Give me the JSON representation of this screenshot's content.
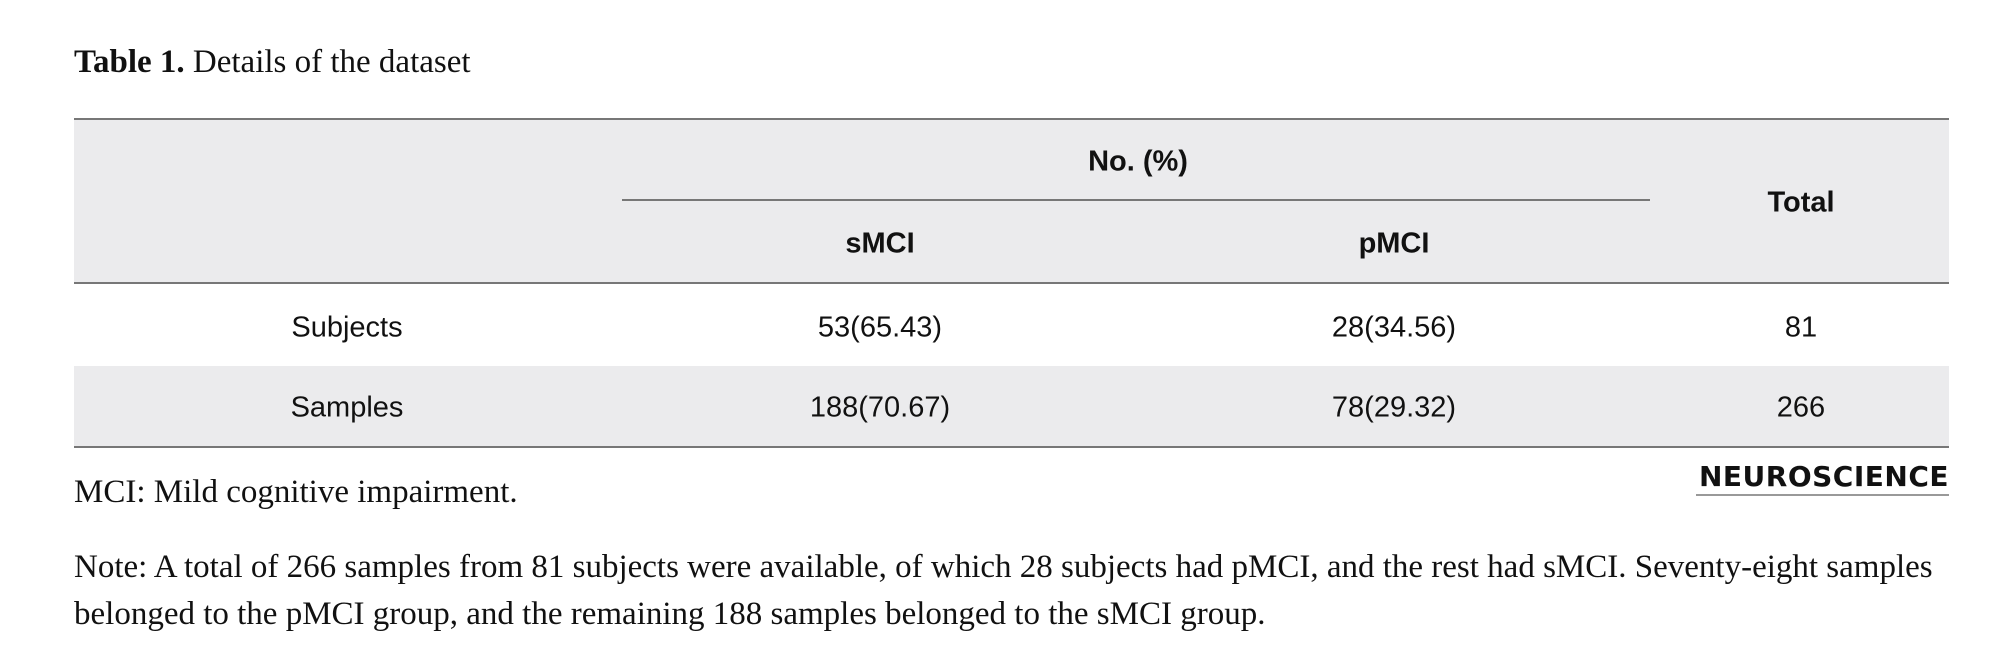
{
  "caption": {
    "label": "Table 1.",
    "text": "Details of the dataset"
  },
  "table": {
    "header": {
      "group": "No. (%)",
      "columns": [
        "sMCI",
        "pMCI"
      ],
      "total": "Total"
    },
    "rows": [
      [
        "Subjects",
        "53(65.43)",
        "28(34.56)",
        "81"
      ],
      [
        "Samples",
        "188(70.67)",
        "78(29.32)",
        "266"
      ]
    ]
  },
  "footnote": "MCI: Mild cognitive impairment.",
  "logo": "NEUROSCIENCE",
  "note": "Note: A total of 266 samples from 81 subjects were available, of which 28 subjects had pMCI, and the rest had sMCI. Seventy-eight samples belonged to the pMCI group, and the remaining 188 samples belonged to the sMCI group."
}
